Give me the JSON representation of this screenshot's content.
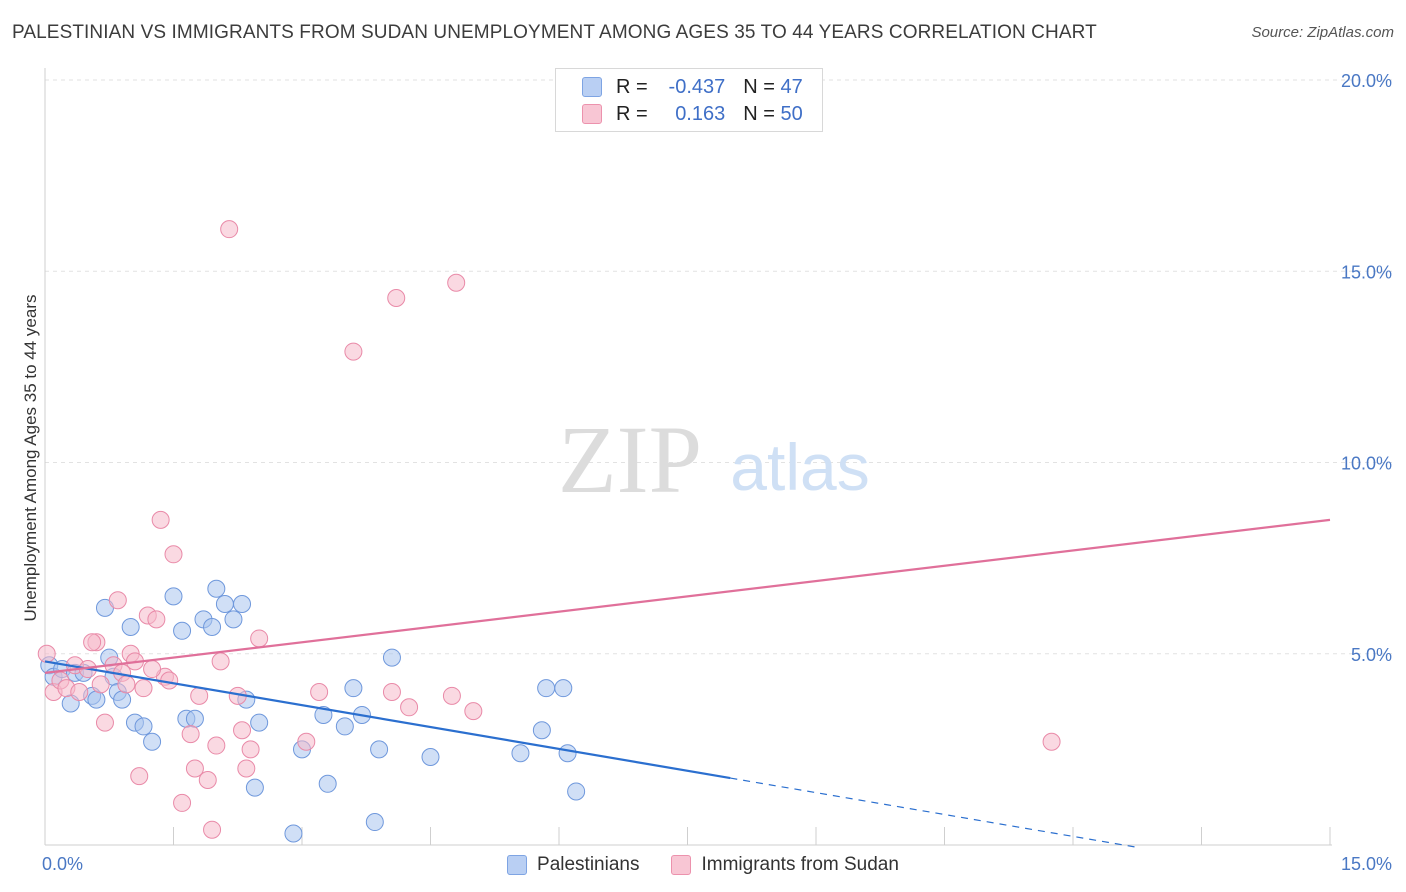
{
  "header": {
    "title": "PALESTINIAN VS IMMIGRANTS FROM SUDAN UNEMPLOYMENT AMONG AGES 35 TO 44 YEARS CORRELATION CHART",
    "source": "Source: ZipAtlas.com"
  },
  "watermark": {
    "zip": "ZIP",
    "atlas": "atlas"
  },
  "legend": {
    "blue": {
      "r_label": "R =",
      "r_value": "-0.437",
      "n_label": "N =",
      "n_value": "47"
    },
    "pink": {
      "r_label": "R =",
      "r_value": "0.163",
      "n_label": "N =",
      "n_value": "50"
    }
  },
  "colors": {
    "blue_fill": "#a9c4ee",
    "blue_stroke": "#6f98dc",
    "blue_line": "#2b6fcf",
    "pink_fill": "#f6b9cb",
    "pink_stroke": "#e98aa8",
    "pink_line": "#e0709a",
    "grid": "#e2e2e2",
    "tick": "#4a78c4"
  },
  "chart_data": {
    "type": "scatter",
    "title": "PALESTINIAN VS IMMIGRANTS FROM SUDAN UNEMPLOYMENT AMONG AGES 35 TO 44 YEARS CORRELATION CHART",
    "xlabel": "",
    "ylabel": "Unemployment Among Ages 35 to 44 years",
    "xlim": [
      0,
      15
    ],
    "ylim": [
      0,
      20
    ],
    "x_tick_labels": [
      "0.0%",
      "15.0%"
    ],
    "y_tick_labels": [
      "5.0%",
      "10.0%",
      "15.0%",
      "20.0%"
    ],
    "y_ticks": [
      5,
      10,
      15,
      20
    ],
    "series": [
      {
        "name": "Palestinians",
        "color": "#a9c4ee",
        "points": [
          [
            0.05,
            4.7
          ],
          [
            0.1,
            4.4
          ],
          [
            0.2,
            4.6
          ],
          [
            0.3,
            3.7
          ],
          [
            0.35,
            4.5
          ],
          [
            0.45,
            4.5
          ],
          [
            0.55,
            3.9
          ],
          [
            0.6,
            3.8
          ],
          [
            0.7,
            6.2
          ],
          [
            0.75,
            4.9
          ],
          [
            0.8,
            4.4
          ],
          [
            0.85,
            4.0
          ],
          [
            0.9,
            3.8
          ],
          [
            1.0,
            5.7
          ],
          [
            1.05,
            3.2
          ],
          [
            1.15,
            3.1
          ],
          [
            1.25,
            2.7
          ],
          [
            1.5,
            6.5
          ],
          [
            1.6,
            5.6
          ],
          [
            1.65,
            3.3
          ],
          [
            1.75,
            3.3
          ],
          [
            1.85,
            5.9
          ],
          [
            1.95,
            5.7
          ],
          [
            2.0,
            6.7
          ],
          [
            2.1,
            6.3
          ],
          [
            2.2,
            5.9
          ],
          [
            2.3,
            6.3
          ],
          [
            2.35,
            3.8
          ],
          [
            2.45,
            1.5
          ],
          [
            2.5,
            3.2
          ],
          [
            2.9,
            0.3
          ],
          [
            3.0,
            2.5
          ],
          [
            3.25,
            3.4
          ],
          [
            3.3,
            1.6
          ],
          [
            3.5,
            3.1
          ],
          [
            3.6,
            4.1
          ],
          [
            3.7,
            3.4
          ],
          [
            3.85,
            0.6
          ],
          [
            3.9,
            2.5
          ],
          [
            4.05,
            4.9
          ],
          [
            4.5,
            2.3
          ],
          [
            5.55,
            2.4
          ],
          [
            5.8,
            3.0
          ],
          [
            5.85,
            4.1
          ],
          [
            6.05,
            4.1
          ],
          [
            6.1,
            2.4
          ],
          [
            6.2,
            1.4
          ]
        ]
      },
      {
        "name": "Immigrants from Sudan",
        "color": "#f6b9cb",
        "points": [
          [
            0.02,
            5.0
          ],
          [
            0.1,
            4.0
          ],
          [
            0.18,
            4.3
          ],
          [
            0.25,
            4.1
          ],
          [
            0.35,
            4.7
          ],
          [
            0.5,
            4.6
          ],
          [
            0.6,
            5.3
          ],
          [
            0.65,
            4.2
          ],
          [
            0.7,
            3.2
          ],
          [
            0.8,
            4.7
          ],
          [
            0.85,
            6.4
          ],
          [
            0.9,
            4.5
          ],
          [
            1.0,
            5.0
          ],
          [
            1.05,
            4.8
          ],
          [
            1.1,
            1.8
          ],
          [
            1.15,
            4.1
          ],
          [
            1.2,
            6.0
          ],
          [
            1.3,
            5.9
          ],
          [
            1.35,
            8.5
          ],
          [
            1.4,
            4.4
          ],
          [
            1.45,
            4.3
          ],
          [
            1.5,
            7.6
          ],
          [
            1.6,
            1.1
          ],
          [
            1.7,
            2.9
          ],
          [
            1.75,
            2.0
          ],
          [
            1.8,
            3.9
          ],
          [
            1.9,
            1.7
          ],
          [
            1.95,
            0.4
          ],
          [
            2.0,
            2.6
          ],
          [
            2.05,
            4.8
          ],
          [
            2.15,
            16.1
          ],
          [
            2.3,
            3.0
          ],
          [
            2.35,
            2.0
          ],
          [
            2.4,
            2.5
          ],
          [
            2.5,
            5.4
          ],
          [
            3.05,
            2.7
          ],
          [
            3.2,
            4.0
          ],
          [
            3.6,
            12.9
          ],
          [
            4.05,
            4.0
          ],
          [
            4.1,
            14.3
          ],
          [
            4.25,
            3.6
          ],
          [
            4.75,
            3.9
          ],
          [
            4.8,
            14.7
          ],
          [
            5.0,
            3.5
          ],
          [
            11.75,
            2.7
          ],
          [
            0.4,
            4.0
          ],
          [
            0.55,
            5.3
          ],
          [
            0.95,
            4.2
          ],
          [
            1.25,
            4.6
          ],
          [
            2.25,
            3.9
          ]
        ]
      }
    ],
    "trend_lines": [
      {
        "series": "Palestinians",
        "x": [
          0.0,
          8.0
        ],
        "y": [
          4.8,
          1.75
        ],
        "dashed_to": [
          15.0,
          -0.9
        ]
      },
      {
        "series": "Immigrants from Sudan",
        "x": [
          0.0,
          15.0
        ],
        "y": [
          4.5,
          8.5
        ]
      }
    ],
    "legend": [
      "Palestinians",
      "Immigrants from Sudan"
    ]
  }
}
